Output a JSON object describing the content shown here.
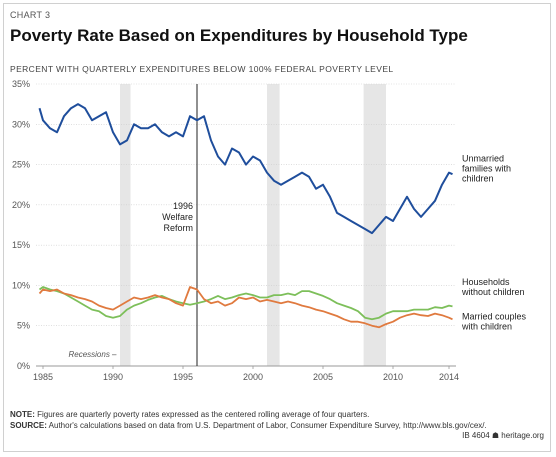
{
  "header": {
    "chart_label": "CHART 3",
    "title": "Poverty Rate Based on Expenditures by Household Type",
    "subtitle": "PERCENT WITH QUARTERLY EXPENDITURES BELOW 100% FEDERAL POVERTY LEVEL"
  },
  "footer": {
    "note_label": "NOTE:",
    "note_text": " Figures are quarterly poverty rates expressed as the centered rolling average of four quarters.",
    "source_label": "SOURCE:",
    "source_text": " Author's calculations based on data from U.S. Department of Labor, Consumer Expenditure Survey, http://www.bls.gov/cex/.",
    "credit": "IB 4604 ☗ heritage.org"
  },
  "colors": {
    "unmarried": "#1f4e9c",
    "married": "#e07a3f",
    "households": "#7dbf5a",
    "recession": "#e6e6e6",
    "grid": "#cccccc",
    "text": "#555555"
  },
  "chart_data": {
    "type": "line",
    "title": "Poverty Rate Based on Expenditures by Household Type",
    "ylabel": "PERCENT WITH QUARTERLY EXPENDITURES BELOW 100% FEDERAL POVERTY LEVEL",
    "xlim": [
      1984.5,
      2014.5
    ],
    "ylim": [
      0,
      35
    ],
    "x_ticks": [
      1985,
      1990,
      1995,
      2000,
      2005,
      2010,
      2014
    ],
    "y_ticks": [
      0,
      5,
      10,
      15,
      20,
      25,
      30,
      35
    ],
    "y_tick_suffix": "%",
    "grid": "horizontal",
    "recessions": [
      {
        "start": 1990.5,
        "end": 1991.25
      },
      {
        "start": 2001.0,
        "end": 2001.9
      },
      {
        "start": 2007.9,
        "end": 2009.5
      }
    ],
    "recession_label": "Recessions –",
    "event": {
      "x": 1996.0,
      "label_lines": [
        "1996",
        "Welfare",
        "Reform"
      ]
    },
    "series": [
      {
        "name": "Unmarried families with children",
        "label_lines": [
          "Unmarried",
          "families with",
          "children"
        ],
        "color_key": "unmarried",
        "points": [
          [
            1984.75,
            32
          ],
          [
            1985,
            30.5
          ],
          [
            1985.5,
            29.5
          ],
          [
            1986,
            29
          ],
          [
            1986.5,
            31
          ],
          [
            1987,
            32
          ],
          [
            1987.5,
            32.5
          ],
          [
            1988,
            32
          ],
          [
            1988.5,
            30.5
          ],
          [
            1989,
            31
          ],
          [
            1989.5,
            31.5
          ],
          [
            1990,
            29
          ],
          [
            1990.5,
            27.5
          ],
          [
            1991,
            28
          ],
          [
            1991.5,
            30
          ],
          [
            1992,
            29.5
          ],
          [
            1992.5,
            29.5
          ],
          [
            1993,
            30
          ],
          [
            1993.5,
            29
          ],
          [
            1994,
            28.5
          ],
          [
            1994.5,
            29
          ],
          [
            1995,
            28.5
          ],
          [
            1995.5,
            31
          ],
          [
            1996,
            30.5
          ],
          [
            1996.5,
            31
          ],
          [
            1997,
            28
          ],
          [
            1997.5,
            26
          ],
          [
            1998,
            25
          ],
          [
            1998.5,
            27
          ],
          [
            1999,
            26.5
          ],
          [
            1999.5,
            25
          ],
          [
            2000,
            26
          ],
          [
            2000.5,
            25.5
          ],
          [
            2001,
            24
          ],
          [
            2001.5,
            23
          ],
          [
            2002,
            22.5
          ],
          [
            2002.5,
            23
          ],
          [
            2003,
            23.5
          ],
          [
            2003.5,
            24
          ],
          [
            2004,
            23.5
          ],
          [
            2004.5,
            22
          ],
          [
            2005,
            22.5
          ],
          [
            2005.5,
            21
          ],
          [
            2006,
            19
          ],
          [
            2006.5,
            18.5
          ],
          [
            2007,
            18
          ],
          [
            2007.5,
            17.5
          ],
          [
            2008,
            17
          ],
          [
            2008.5,
            16.5
          ],
          [
            2009,
            17.5
          ],
          [
            2009.5,
            18.5
          ],
          [
            2010,
            18
          ],
          [
            2010.5,
            19.5
          ],
          [
            2011,
            21
          ],
          [
            2011.5,
            19.5
          ],
          [
            2012,
            18.5
          ],
          [
            2012.5,
            19.5
          ],
          [
            2013,
            20.5
          ],
          [
            2013.5,
            22.5
          ],
          [
            2014,
            24
          ],
          [
            2014.25,
            23.8
          ]
        ]
      },
      {
        "name": "Households without children",
        "label_lines": [
          "Households",
          "without children"
        ],
        "color_key": "households",
        "points": [
          [
            1984.75,
            9.5
          ],
          [
            1985,
            9.8
          ],
          [
            1985.5,
            9.5
          ],
          [
            1986,
            9.3
          ],
          [
            1986.5,
            9
          ],
          [
            1987,
            8.5
          ],
          [
            1987.5,
            8
          ],
          [
            1988,
            7.5
          ],
          [
            1988.5,
            7
          ],
          [
            1989,
            6.8
          ],
          [
            1989.5,
            6.2
          ],
          [
            1990,
            6
          ],
          [
            1990.5,
            6.2
          ],
          [
            1991,
            7
          ],
          [
            1991.5,
            7.5
          ],
          [
            1992,
            7.8
          ],
          [
            1992.5,
            8.2
          ],
          [
            1993,
            8.5
          ],
          [
            1993.5,
            8.7
          ],
          [
            1994,
            8.3
          ],
          [
            1994.5,
            8
          ],
          [
            1995,
            7.8
          ],
          [
            1995.5,
            7.6
          ],
          [
            1996,
            7.8
          ],
          [
            1996.5,
            8
          ],
          [
            1997,
            8.3
          ],
          [
            1997.5,
            8.7
          ],
          [
            1998,
            8.3
          ],
          [
            1998.5,
            8.5
          ],
          [
            1999,
            8.8
          ],
          [
            1999.5,
            9
          ],
          [
            2000,
            8.8
          ],
          [
            2000.5,
            8.5
          ],
          [
            2001,
            8.5
          ],
          [
            2001.5,
            8.8
          ],
          [
            2002,
            8.8
          ],
          [
            2002.5,
            9
          ],
          [
            2003,
            8.8
          ],
          [
            2003.5,
            9.3
          ],
          [
            2004,
            9.3
          ],
          [
            2004.5,
            9
          ],
          [
            2005,
            8.7
          ],
          [
            2005.5,
            8.3
          ],
          [
            2006,
            7.8
          ],
          [
            2006.5,
            7.5
          ],
          [
            2007,
            7.2
          ],
          [
            2007.5,
            6.8
          ],
          [
            2008,
            6
          ],
          [
            2008.5,
            5.8
          ],
          [
            2009,
            6
          ],
          [
            2009.5,
            6.5
          ],
          [
            2010,
            6.8
          ],
          [
            2010.5,
            6.8
          ],
          [
            2011,
            6.8
          ],
          [
            2011.5,
            7
          ],
          [
            2012,
            7
          ],
          [
            2012.5,
            7
          ],
          [
            2013,
            7.3
          ],
          [
            2013.5,
            7.2
          ],
          [
            2014,
            7.5
          ],
          [
            2014.25,
            7.4
          ]
        ]
      },
      {
        "name": "Married couples with children",
        "label_lines": [
          "Married couples",
          "with children"
        ],
        "color_key": "married",
        "points": [
          [
            1984.75,
            9
          ],
          [
            1985,
            9.5
          ],
          [
            1985.5,
            9.3
          ],
          [
            1986,
            9.5
          ],
          [
            1986.5,
            9
          ],
          [
            1987,
            8.8
          ],
          [
            1987.5,
            8.5
          ],
          [
            1988,
            8.3
          ],
          [
            1988.5,
            8
          ],
          [
            1989,
            7.5
          ],
          [
            1989.5,
            7.2
          ],
          [
            1990,
            7
          ],
          [
            1990.5,
            7.5
          ],
          [
            1991,
            8
          ],
          [
            1991.5,
            8.5
          ],
          [
            1992,
            8.3
          ],
          [
            1992.5,
            8.5
          ],
          [
            1993,
            8.8
          ],
          [
            1993.5,
            8.5
          ],
          [
            1994,
            8.3
          ],
          [
            1994.5,
            7.8
          ],
          [
            1995,
            7.5
          ],
          [
            1995.5,
            9.8
          ],
          [
            1996,
            9.5
          ],
          [
            1996.5,
            8.3
          ],
          [
            1997,
            7.8
          ],
          [
            1997.5,
            8
          ],
          [
            1998,
            7.5
          ],
          [
            1998.5,
            7.8
          ],
          [
            1999,
            8.5
          ],
          [
            1999.5,
            8.3
          ],
          [
            2000,
            8.5
          ],
          [
            2000.5,
            8
          ],
          [
            2001,
            8.2
          ],
          [
            2001.5,
            8
          ],
          [
            2002,
            7.8
          ],
          [
            2002.5,
            8
          ],
          [
            2003,
            7.8
          ],
          [
            2003.5,
            7.5
          ],
          [
            2004,
            7.3
          ],
          [
            2004.5,
            7
          ],
          [
            2005,
            6.8
          ],
          [
            2005.5,
            6.5
          ],
          [
            2006,
            6.2
          ],
          [
            2006.5,
            5.8
          ],
          [
            2007,
            5.5
          ],
          [
            2007.5,
            5.5
          ],
          [
            2008,
            5.3
          ],
          [
            2008.5,
            5
          ],
          [
            2009,
            4.8
          ],
          [
            2009.5,
            5.2
          ],
          [
            2010,
            5.5
          ],
          [
            2010.5,
            6
          ],
          [
            2011,
            6.3
          ],
          [
            2011.5,
            6.5
          ],
          [
            2012,
            6.3
          ],
          [
            2012.5,
            6.2
          ],
          [
            2013,
            6.5
          ],
          [
            2013.5,
            6.3
          ],
          [
            2014,
            6
          ],
          [
            2014.25,
            5.8
          ]
        ]
      }
    ]
  }
}
